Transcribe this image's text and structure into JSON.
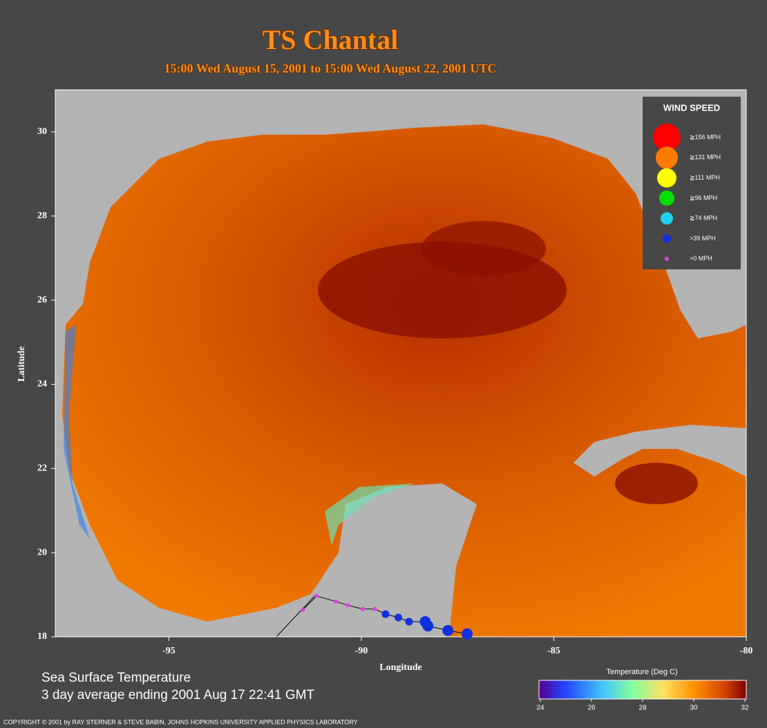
{
  "header": {
    "title": "TS Chantal",
    "subtitle": "15:00 Wed August 15, 2001 to 15:00 Wed August 22, 2001  UTC"
  },
  "map": {
    "xlabel": "Longitude",
    "ylabel": "Latitude",
    "xlim": [
      -97.95,
      -80
    ],
    "ylim": [
      18,
      31
    ],
    "xticks": [
      -95,
      -90,
      -85,
      -80
    ],
    "yticks": [
      18,
      20,
      22,
      24,
      26,
      28,
      30
    ]
  },
  "track": {
    "lon": [
      -91.52,
      -91.16,
      -90.66,
      -90.35,
      -89.96,
      -89.65,
      -89.37,
      -89.04,
      -88.76,
      -88.34,
      -88.27,
      -87.75,
      -87.25
    ],
    "lat": [
      18.64,
      18.97,
      18.84,
      18.75,
      18.66,
      18.66,
      18.54,
      18.46,
      18.36,
      18.36,
      18.26,
      18.15,
      18.07
    ],
    "colors": [
      "#e040e0",
      "#e040e0",
      "#e040e0",
      "#e040e0",
      "#e040e0",
      "#e040e0",
      "#1030e0",
      "#1030e0",
      "#1030e0",
      "#1030e0",
      "#1030e0",
      "#1030e0",
      "#1030e0"
    ]
  },
  "legend": {
    "title": "WIND SPEED",
    "items": [
      {
        "label": "≧156 MPH",
        "color": "#ff0000"
      },
      {
        "label": "≧131 MPH",
        "color": "#ff7a00"
      },
      {
        "label": "≧111 MPH",
        "color": "#ffff00"
      },
      {
        "label": "≧96 MPH",
        "color": "#00e000"
      },
      {
        "label": "≧74 MPH",
        "color": "#20d0f0"
      },
      {
        "label": ">39 MPH",
        "color": "#1030e0"
      },
      {
        "label": ">0 MPH",
        "color": "#e040e0"
      }
    ]
  },
  "colorbar": {
    "title": "Temperature (Deg C)",
    "lim": [
      24,
      32
    ],
    "ticks": [
      24,
      26,
      28,
      30,
      32
    ]
  },
  "footer": {
    "line1": "Sea Surface Temperature",
    "line2": "3 day average ending 2001 Aug 17 22:41 GMT",
    "copyright": "COPYRIGHT © 2001 by RAY STERNER & STEVE BABIN, JOHNS HOPKINS UNIVERSITY APPLIED PHYSICS LABORATORY"
  }
}
